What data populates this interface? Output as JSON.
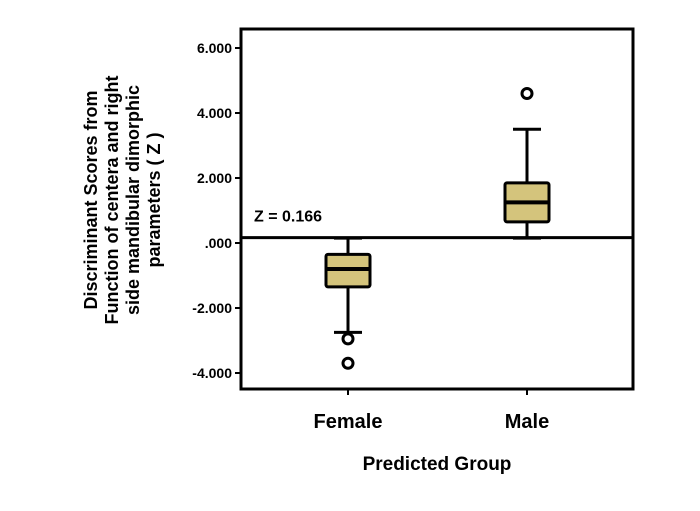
{
  "chart_data": {
    "type": "boxplot",
    "categories": [
      "Female",
      "Male"
    ],
    "xlabel": "Predicted Group",
    "ylabel_lines": [
      "Discriminant Scores from",
      "Function of centera and right",
      "side mandibular dimorphic",
      "parameters ( Z )"
    ],
    "ylim": [
      -4.6,
      6.6
    ],
    "yticks": [
      6.0,
      4.0,
      2.0,
      0.0,
      -2.0,
      -4.0
    ],
    "ytick_labels": [
      "6.000",
      "4.000",
      "2.000",
      ".000",
      "-2.000",
      "-4.000"
    ],
    "boxes": [
      {
        "category": "Female",
        "whisker_low": -2.75,
        "q1": -1.35,
        "median": -0.8,
        "q3": -0.35,
        "whisker_high": 0.15,
        "outliers": [
          -2.95,
          -3.7
        ]
      },
      {
        "category": "Male",
        "whisker_low": 0.15,
        "q1": 0.65,
        "median": 1.25,
        "q3": 1.85,
        "whisker_high": 3.5,
        "outliers": [
          4.6
        ]
      }
    ],
    "reference_line": {
      "value": 0.166,
      "label": "Z = 0.166"
    },
    "colors": {
      "box_fill": "#d4c47c",
      "outline": "#000000"
    },
    "grid": false
  }
}
